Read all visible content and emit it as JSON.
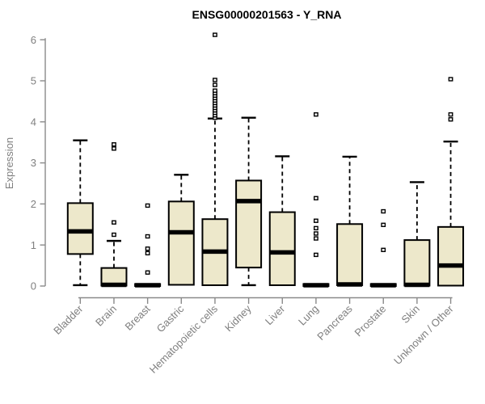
{
  "chart_data": {
    "type": "boxplot",
    "title": "ENSG00000201563 - Y_RNA",
    "ylabel": "Expression",
    "xlabel": "",
    "ylim": [
      0,
      6
    ],
    "yticks": [
      0,
      1,
      2,
      3,
      4,
      5,
      6
    ],
    "grid": false,
    "legend": "none",
    "categories": [
      "Bladder",
      "Brain",
      "Breast",
      "Gastric",
      "Hematopoietic cells",
      "Kidney",
      "Liver",
      "Lung",
      "Pancreas",
      "Prostate",
      "Skin",
      "Unknown / Other"
    ],
    "series": [
      {
        "category": "Bladder",
        "low": 0.02,
        "q1": 0.78,
        "median": 1.33,
        "q3": 2.02,
        "high": 3.55,
        "outliers": []
      },
      {
        "category": "Brain",
        "low": 0.01,
        "q1": 0.01,
        "median": 0.03,
        "q3": 0.44,
        "high": 1.1,
        "outliers": [
          1.25,
          1.55,
          3.35,
          3.45
        ]
      },
      {
        "category": "Breast",
        "low": 0.0,
        "q1": 0.0,
        "median": 0.02,
        "q3": 0.05,
        "high": 0.05,
        "outliers": [
          0.33,
          0.8,
          0.91,
          1.21,
          1.96
        ]
      },
      {
        "category": "Gastric",
        "low": 0.03,
        "q1": 0.03,
        "median": 1.31,
        "q3": 2.06,
        "high": 2.71,
        "outliers": []
      },
      {
        "category": "Hematopoietic cells",
        "low": 0.02,
        "q1": 0.02,
        "median": 0.84,
        "q3": 1.63,
        "high": 4.08,
        "outliers": [
          4.1,
          4.16,
          4.22,
          4.28,
          4.34,
          4.4,
          4.46,
          4.52,
          4.58,
          4.64,
          4.7,
          4.76,
          4.9,
          5.02,
          6.12
        ]
      },
      {
        "category": "Kidney",
        "low": 0.02,
        "q1": 0.45,
        "median": 2.07,
        "q3": 2.57,
        "high": 4.1,
        "outliers": []
      },
      {
        "category": "Liver",
        "low": 0.02,
        "q1": 0.02,
        "median": 0.82,
        "q3": 1.8,
        "high": 3.16,
        "outliers": []
      },
      {
        "category": "Lung",
        "low": 0.0,
        "q1": 0.0,
        "median": 0.02,
        "q3": 0.05,
        "high": 0.05,
        "outliers": [
          0.76,
          1.16,
          1.28,
          1.41,
          1.59,
          2.14,
          4.18
        ]
      },
      {
        "category": "Pancreas",
        "low": 0.02,
        "q1": 0.02,
        "median": 0.04,
        "q3": 1.51,
        "high": 3.15,
        "outliers": []
      },
      {
        "category": "Prostate",
        "low": 0.0,
        "q1": 0.0,
        "median": 0.02,
        "q3": 0.05,
        "high": 0.05,
        "outliers": [
          0.88,
          1.49,
          1.82
        ]
      },
      {
        "category": "Skin",
        "low": 0.01,
        "q1": 0.01,
        "median": 0.03,
        "q3": 1.12,
        "high": 2.53,
        "outliers": []
      },
      {
        "category": "Unknown / Other",
        "low": 0.01,
        "q1": 0.01,
        "median": 0.5,
        "q3": 1.44,
        "high": 3.52,
        "outliers": [
          4.06,
          4.18,
          5.04
        ]
      }
    ],
    "colors": {
      "box_fill": "#ede8cb",
      "box_border": "#000000",
      "median": "#000000",
      "whisker": "#000000",
      "outlier_stroke": "#000000",
      "outlier_fill": "#ffffff",
      "axis_line": "#8a8a8a",
      "tick_text": "#7f7f7f",
      "title_text": "#000000",
      "background": "#ffffff"
    }
  }
}
